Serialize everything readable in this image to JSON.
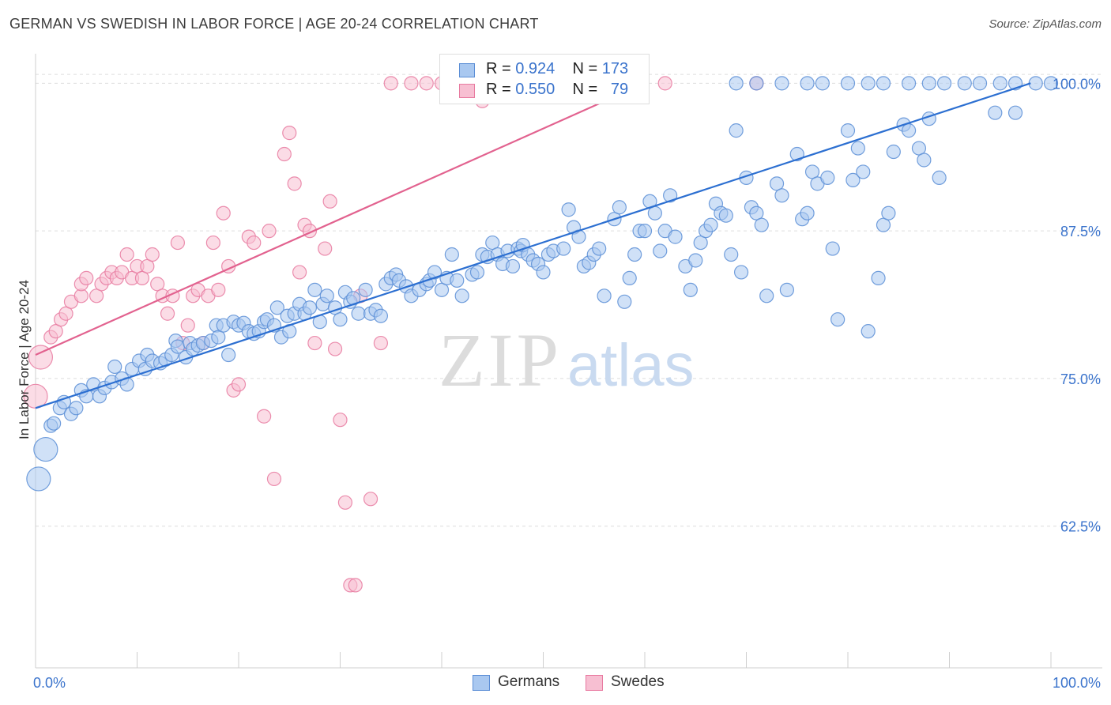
{
  "header": {
    "title": "GERMAN VS SWEDISH IN LABOR FORCE | AGE 20-24 CORRELATION CHART",
    "source": "Source: ZipAtlas.com"
  },
  "watermark": {
    "zip": "ZIP",
    "atlas": "atlas"
  },
  "legend": {
    "rows": [
      {
        "r_label": "R =",
        "r_value": "0.924",
        "n_label": "N =",
        "n_value": "173"
      },
      {
        "r_label": "R =",
        "r_value": "0.550",
        "n_label": "N =",
        "n_value": "79"
      }
    ]
  },
  "chart_data": {
    "type": "scatter",
    "title": "GERMAN VS SWEDISH IN LABOR FORCE | AGE 20-24 CORRELATION CHART",
    "xlabel": "",
    "ylabel": "In Labor Force | Age 20-24",
    "xlim": [
      0,
      100
    ],
    "ylim": [
      50.5,
      102.5
    ],
    "x_tick_labels": [
      "0.0%",
      "100.0%"
    ],
    "y_ticks": [
      62.5,
      75.0,
      87.5,
      100.0
    ],
    "y_tick_labels": [
      "62.5%",
      "75.0%",
      "87.5%",
      "100.0%"
    ],
    "grid": true,
    "legend_position": "top-center",
    "colors": {
      "germans": "#5b8ed6",
      "germans_fill": "#a9c8f0",
      "swedes": "#e87aa0",
      "swedes_fill": "#f7bfd2",
      "tick_label": "#3a73cc"
    },
    "series": [
      {
        "name": "Germans",
        "r": 0.924,
        "n": 173,
        "trend": {
          "x": [
            0,
            98
          ],
          "y": [
            72.5,
            100.0
          ]
        },
        "points": [
          [
            0.3,
            66.5
          ],
          [
            1.0,
            69.0
          ],
          [
            1.5,
            71.0
          ],
          [
            1.8,
            71.2
          ],
          [
            2.4,
            72.5
          ],
          [
            2.8,
            73.0
          ],
          [
            3.5,
            72.0
          ],
          [
            4.0,
            72.5
          ],
          [
            4.5,
            74.0
          ],
          [
            5.0,
            73.5
          ],
          [
            5.7,
            74.5
          ],
          [
            6.3,
            73.5
          ],
          [
            6.8,
            74.2
          ],
          [
            7.5,
            74.7
          ],
          [
            7.8,
            76.0
          ],
          [
            8.5,
            75.0
          ],
          [
            9.0,
            74.5
          ],
          [
            9.5,
            75.8
          ],
          [
            10.2,
            76.5
          ],
          [
            10.8,
            75.8
          ],
          [
            11.0,
            77.0
          ],
          [
            11.5,
            76.5
          ],
          [
            12.3,
            76.3
          ],
          [
            12.8,
            76.6
          ],
          [
            13.4,
            77.0
          ],
          [
            13.8,
            78.2
          ],
          [
            14.0,
            77.7
          ],
          [
            14.8,
            76.8
          ],
          [
            15.2,
            78.0
          ],
          [
            15.5,
            77.5
          ],
          [
            16.0,
            77.8
          ],
          [
            16.5,
            78.0
          ],
          [
            17.3,
            78.2
          ],
          [
            17.8,
            79.5
          ],
          [
            18.0,
            78.5
          ],
          [
            18.5,
            79.5
          ],
          [
            19.0,
            77.0
          ],
          [
            19.5,
            79.8
          ],
          [
            20.0,
            79.5
          ],
          [
            20.5,
            79.7
          ],
          [
            21.0,
            79.0
          ],
          [
            21.5,
            78.8
          ],
          [
            22.0,
            79.0
          ],
          [
            22.5,
            79.8
          ],
          [
            22.8,
            80.0
          ],
          [
            23.5,
            79.5
          ],
          [
            23.8,
            81.0
          ],
          [
            24.2,
            78.5
          ],
          [
            24.8,
            80.3
          ],
          [
            25.0,
            79.0
          ],
          [
            25.5,
            80.5
          ],
          [
            26.0,
            81.3
          ],
          [
            26.5,
            80.5
          ],
          [
            27.0,
            81.0
          ],
          [
            27.5,
            82.5
          ],
          [
            28.0,
            79.8
          ],
          [
            28.3,
            81.3
          ],
          [
            28.7,
            82.0
          ],
          [
            29.5,
            81.0
          ],
          [
            30.0,
            80.0
          ],
          [
            30.5,
            82.3
          ],
          [
            31.0,
            81.5
          ],
          [
            31.3,
            81.8
          ],
          [
            31.8,
            80.5
          ],
          [
            32.5,
            82.5
          ],
          [
            33.0,
            80.5
          ],
          [
            33.5,
            80.8
          ],
          [
            34.0,
            80.3
          ],
          [
            34.5,
            83.0
          ],
          [
            35.0,
            83.5
          ],
          [
            35.5,
            83.8
          ],
          [
            35.8,
            83.3
          ],
          [
            36.5,
            82.8
          ],
          [
            37.0,
            82.0
          ],
          [
            37.8,
            82.5
          ],
          [
            38.5,
            83.0
          ],
          [
            38.8,
            83.3
          ],
          [
            39.3,
            84.0
          ],
          [
            40.0,
            82.5
          ],
          [
            40.5,
            83.5
          ],
          [
            41.0,
            85.5
          ],
          [
            41.5,
            83.3
          ],
          [
            42.0,
            82.0
          ],
          [
            43.0,
            83.8
          ],
          [
            43.5,
            84.0
          ],
          [
            44.0,
            85.5
          ],
          [
            44.5,
            85.3
          ],
          [
            45.0,
            86.5
          ],
          [
            45.5,
            85.5
          ],
          [
            46.0,
            84.7
          ],
          [
            46.5,
            85.8
          ],
          [
            47.0,
            84.5
          ],
          [
            47.5,
            86.0
          ],
          [
            47.8,
            85.8
          ],
          [
            48.0,
            86.3
          ],
          [
            48.5,
            85.5
          ],
          [
            49.0,
            85.0
          ],
          [
            49.5,
            84.7
          ],
          [
            50.0,
            84.0
          ],
          [
            50.5,
            85.5
          ],
          [
            51.0,
            85.8
          ],
          [
            52.0,
            86.0
          ],
          [
            52.5,
            89.3
          ],
          [
            53.0,
            87.8
          ],
          [
            53.5,
            87.0
          ],
          [
            54.0,
            84.5
          ],
          [
            54.5,
            84.8
          ],
          [
            55.0,
            85.5
          ],
          [
            55.5,
            86.0
          ],
          [
            56.0,
            82.0
          ],
          [
            57.0,
            88.5
          ],
          [
            57.5,
            89.5
          ],
          [
            58.0,
            81.5
          ],
          [
            58.5,
            83.5
          ],
          [
            59.0,
            85.5
          ],
          [
            59.5,
            87.5
          ],
          [
            60.0,
            87.5
          ],
          [
            60.5,
            90.0
          ],
          [
            61.0,
            89.0
          ],
          [
            61.5,
            85.8
          ],
          [
            62.0,
            87.5
          ],
          [
            62.5,
            90.5
          ],
          [
            63.0,
            87.0
          ],
          [
            64.0,
            84.5
          ],
          [
            64.5,
            82.5
          ],
          [
            65.0,
            85.0
          ],
          [
            65.5,
            86.5
          ],
          [
            66.0,
            87.5
          ],
          [
            66.5,
            88.0
          ],
          [
            67.0,
            89.8
          ],
          [
            67.5,
            89.0
          ],
          [
            68.0,
            88.8
          ],
          [
            68.5,
            85.5
          ],
          [
            69.0,
            96.0
          ],
          [
            69.5,
            84.0
          ],
          [
            70.0,
            92.0
          ],
          [
            70.5,
            89.5
          ],
          [
            71.0,
            89.0
          ],
          [
            71.5,
            88.0
          ],
          [
            72.0,
            82.0
          ],
          [
            73.0,
            91.5
          ],
          [
            73.5,
            90.5
          ],
          [
            74.0,
            82.5
          ],
          [
            75.0,
            94.0
          ],
          [
            75.5,
            88.5
          ],
          [
            76.0,
            89.0
          ],
          [
            76.5,
            92.5
          ],
          [
            77.0,
            91.5
          ],
          [
            78.0,
            92.0
          ],
          [
            78.5,
            86.0
          ],
          [
            79.0,
            80.0
          ],
          [
            80.0,
            96.0
          ],
          [
            80.5,
            91.8
          ],
          [
            81.0,
            94.5
          ],
          [
            81.5,
            92.5
          ],
          [
            82.0,
            79.0
          ],
          [
            83.0,
            83.5
          ],
          [
            83.5,
            88.0
          ],
          [
            84.0,
            89.0
          ],
          [
            84.5,
            94.2
          ],
          [
            85.5,
            96.5
          ],
          [
            86.0,
            96.0
          ],
          [
            87.0,
            94.5
          ],
          [
            87.5,
            93.5
          ],
          [
            88.0,
            97.0
          ],
          [
            89.0,
            92.0
          ],
          [
            69.0,
            100.0
          ],
          [
            71.0,
            100.0
          ],
          [
            73.5,
            100.0
          ],
          [
            76.0,
            100.0
          ],
          [
            77.5,
            100.0
          ],
          [
            80.0,
            100.0
          ],
          [
            82.0,
            100.0
          ],
          [
            83.5,
            100.0
          ],
          [
            86.0,
            100.0
          ],
          [
            88.0,
            100.0
          ],
          [
            89.5,
            100.0
          ],
          [
            91.5,
            100.0
          ],
          [
            93.0,
            100.0
          ],
          [
            95.0,
            100.0
          ],
          [
            96.5,
            100.0
          ],
          [
            98.5,
            100.0
          ],
          [
            100.0,
            100.0
          ],
          [
            94.5,
            97.5
          ],
          [
            96.5,
            97.5
          ]
        ]
      },
      {
        "name": "Swedes",
        "r": 0.55,
        "n": 79,
        "trend": {
          "x": [
            0,
            60
          ],
          "y": [
            77.0,
            100.0
          ]
        },
        "points": [
          [
            0.0,
            73.5
          ],
          [
            0.5,
            76.8
          ],
          [
            1.5,
            78.5
          ],
          [
            2.0,
            79.0
          ],
          [
            2.5,
            80.0
          ],
          [
            3.0,
            80.5
          ],
          [
            3.5,
            81.5
          ],
          [
            4.5,
            82.0
          ],
          [
            4.5,
            83.0
          ],
          [
            5.0,
            83.5
          ],
          [
            6.0,
            82.0
          ],
          [
            6.5,
            83.0
          ],
          [
            7.0,
            83.5
          ],
          [
            7.5,
            84.0
          ],
          [
            8.0,
            83.5
          ],
          [
            8.5,
            84.0
          ],
          [
            9.0,
            85.5
          ],
          [
            9.5,
            83.5
          ],
          [
            10.0,
            84.5
          ],
          [
            10.5,
            83.5
          ],
          [
            11.0,
            84.5
          ],
          [
            11.5,
            85.5
          ],
          [
            12.0,
            83.0
          ],
          [
            12.5,
            82.0
          ],
          [
            13.0,
            80.5
          ],
          [
            13.5,
            82.0
          ],
          [
            14.0,
            86.5
          ],
          [
            14.5,
            78.0
          ],
          [
            15.0,
            79.5
          ],
          [
            15.5,
            82.0
          ],
          [
            16.0,
            82.5
          ],
          [
            16.5,
            78.0
          ],
          [
            17.5,
            86.5
          ],
          [
            17.0,
            82.0
          ],
          [
            18.0,
            82.5
          ],
          [
            18.5,
            89.0
          ],
          [
            19.0,
            84.5
          ],
          [
            19.5,
            74.0
          ],
          [
            20.0,
            74.5
          ],
          [
            21.0,
            87.0
          ],
          [
            21.5,
            86.5
          ],
          [
            22.5,
            71.8
          ],
          [
            23.0,
            87.5
          ],
          [
            23.5,
            66.5
          ],
          [
            24.5,
            94.0
          ],
          [
            25.0,
            95.8
          ],
          [
            25.5,
            91.5
          ],
          [
            26.0,
            84.0
          ],
          [
            26.5,
            88.0
          ],
          [
            27.0,
            87.5
          ],
          [
            27.5,
            78.0
          ],
          [
            28.5,
            86.0
          ],
          [
            29.0,
            90.0
          ],
          [
            29.5,
            77.5
          ],
          [
            30.0,
            71.5
          ],
          [
            30.5,
            64.5
          ],
          [
            31.0,
            57.5
          ],
          [
            31.5,
            57.5
          ],
          [
            32.0,
            82.0
          ],
          [
            33.0,
            64.8
          ],
          [
            34.0,
            78.0
          ],
          [
            35.0,
            100.0
          ],
          [
            37.0,
            100.0
          ],
          [
            38.5,
            100.0
          ],
          [
            40.0,
            100.0
          ],
          [
            41.0,
            100.0
          ],
          [
            42.0,
            100.0
          ],
          [
            43.0,
            100.0
          ],
          [
            44.0,
            98.5
          ],
          [
            45.0,
            100.0
          ],
          [
            46.0,
            100.0
          ],
          [
            47.0,
            100.0
          ],
          [
            48.0,
            100.0
          ],
          [
            49.5,
            100.0
          ],
          [
            50.0,
            100.0
          ],
          [
            55.0,
            100.0
          ],
          [
            59.5,
            100.0
          ],
          [
            62.0,
            100.0
          ],
          [
            71.0,
            100.0
          ],
          [
            58.5,
            100.0
          ]
        ]
      }
    ]
  },
  "bottom_legend": {
    "germans_label": "Germans",
    "swedes_label": "Swedes"
  }
}
